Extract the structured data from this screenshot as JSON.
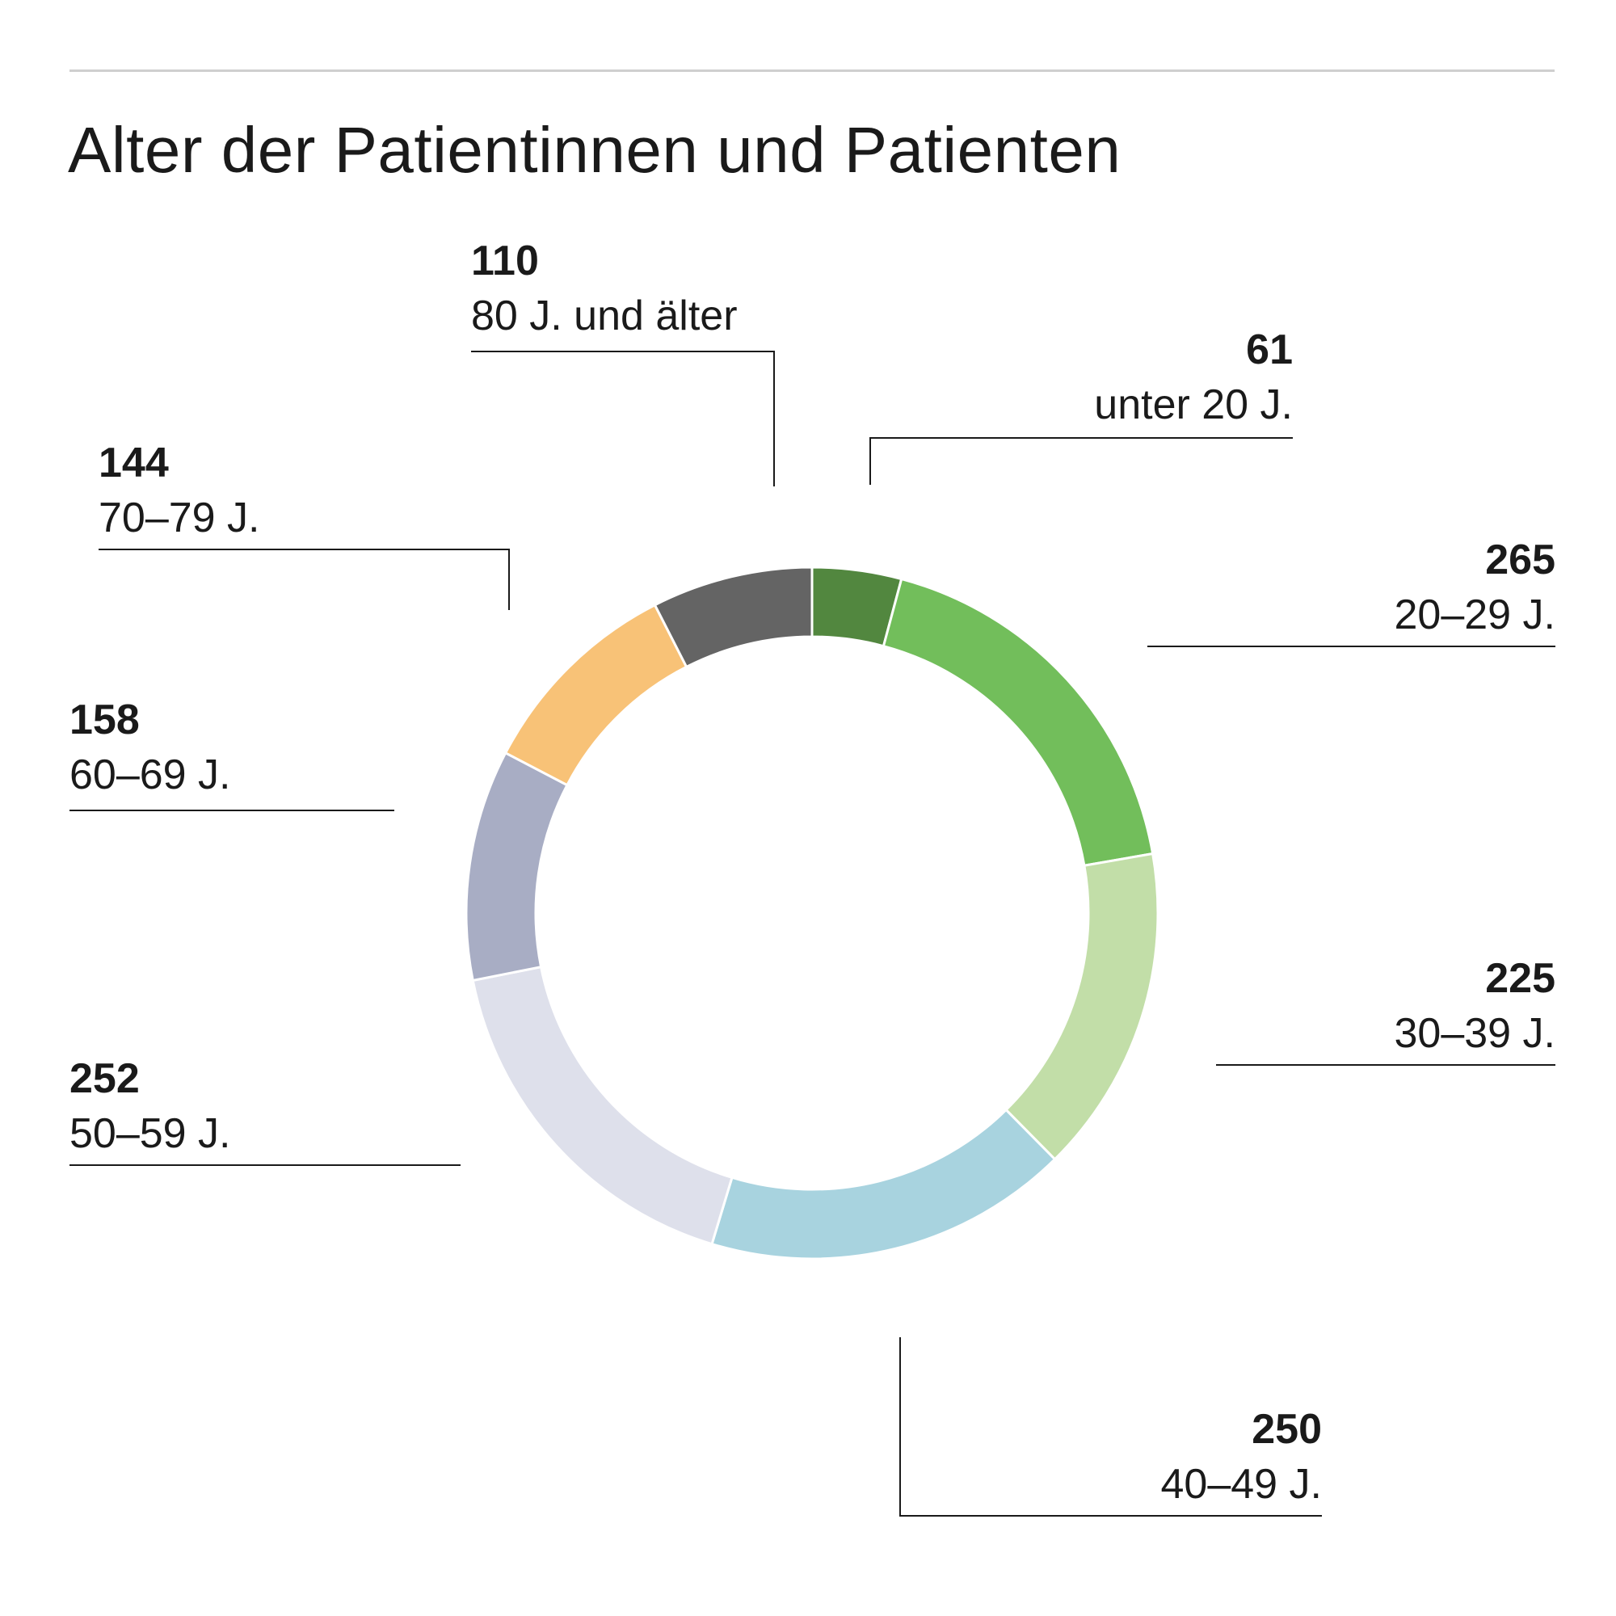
{
  "title": "Alter der Patientinnen und Patienten",
  "chart_data": {
    "type": "pie",
    "title": "Alter der Patientinnen und Patienten",
    "categories": [
      "unter 20 J.",
      "20–29 J.",
      "30–39 J.",
      "40–49 J.",
      "50–59 J.",
      "60–69 J.",
      "70–79 J.",
      "80 J. und älter"
    ],
    "values": [
      61,
      265,
      225,
      250,
      252,
      158,
      144,
      110
    ],
    "colors": [
      "#52873F",
      "#72BE5B",
      "#C2DEA8",
      "#A8D3DF",
      "#DEE0EB",
      "#A8ADC4",
      "#F8C277",
      "#646464"
    ],
    "value_labels": [
      "61",
      "265",
      "225",
      "250",
      "252",
      "158",
      "144",
      "110"
    ],
    "style": "donut",
    "start": "top, clockwise",
    "legend": "none"
  }
}
